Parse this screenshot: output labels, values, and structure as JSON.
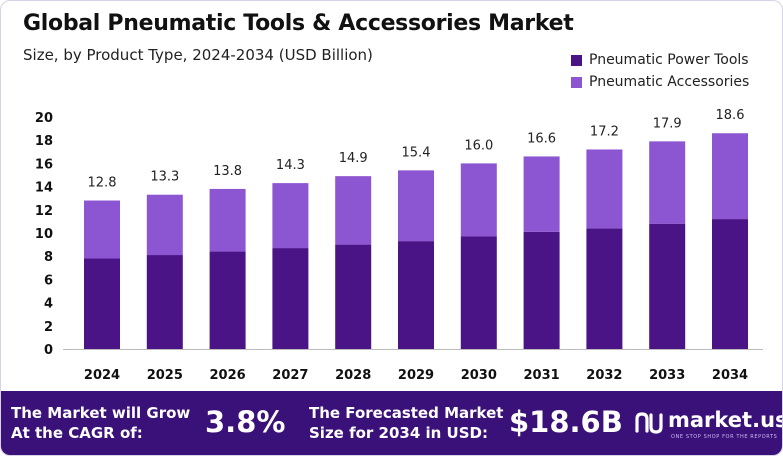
{
  "header": {
    "title": "Global Pneumatic Tools & Accessories Market",
    "subtitle": "Size, by Product Type, 2024-2034 (USD Billion)"
  },
  "chart_data": {
    "type": "bar",
    "stacked": true,
    "categories": [
      "2024",
      "2025",
      "2026",
      "2027",
      "2028",
      "2029",
      "2030",
      "2031",
      "2032",
      "2033",
      "2034"
    ],
    "series": [
      {
        "name": "Pneumatic Power Tools",
        "color": "#4a1486",
        "values": [
          7.8,
          8.1,
          8.4,
          8.7,
          9.0,
          9.3,
          9.7,
          10.1,
          10.4,
          10.8,
          11.2
        ]
      },
      {
        "name": "Pneumatic Accessories",
        "color": "#8c55d2",
        "values": [
          5.0,
          5.2,
          5.4,
          5.6,
          5.9,
          6.1,
          6.3,
          6.5,
          6.8,
          7.1,
          7.4
        ]
      }
    ],
    "totals": [
      "12.8",
      "13.3",
      "13.8",
      "14.3",
      "14.9",
      "15.4",
      "16.0",
      "16.6",
      "17.2",
      "17.9",
      "18.6"
    ],
    "yticks": [
      "0",
      "2",
      "4",
      "6",
      "8",
      "10",
      "12",
      "14",
      "16",
      "18",
      "20"
    ],
    "ylim": [
      0,
      20
    ],
    "grid": false,
    "legend_position": "top-right"
  },
  "footer": {
    "cagr_label_line1": "The Market will Grow",
    "cagr_label_line2": "At the CAGR of:",
    "cagr_value": "3.8%",
    "forecast_label_line1": "The Forecasted Market",
    "forecast_label_line2": "Size for 2034 in USD:",
    "forecast_value": "$18.6B",
    "logo_text": "market.us",
    "logo_tagline": "ONE STOP SHOP FOR THE REPORTS"
  }
}
